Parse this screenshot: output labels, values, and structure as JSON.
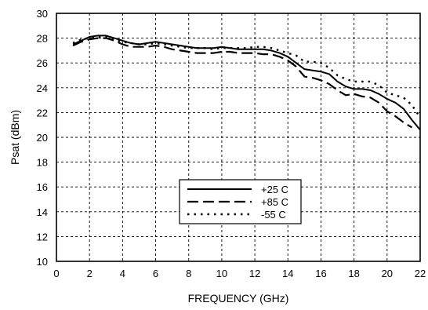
{
  "chart_data": {
    "type": "line",
    "title": "",
    "xlabel": "FREQUENCY (GHz)",
    "ylabel": "Psat (dBm)",
    "xlim": [
      0,
      22
    ],
    "ylim": [
      10,
      30
    ],
    "xticks": [
      0,
      2,
      4,
      6,
      8,
      10,
      12,
      14,
      16,
      18,
      20,
      22
    ],
    "yticks": [
      10,
      12,
      14,
      16,
      18,
      20,
      22,
      24,
      26,
      28,
      30
    ],
    "grid": true,
    "grid_style": "dashed",
    "legend_position": "center-bottom",
    "series": [
      {
        "name": "+25 C",
        "line_style": "solid",
        "x": [
          1,
          1.5,
          2,
          2.5,
          3,
          3.5,
          4,
          4.5,
          5,
          5.5,
          6,
          6.5,
          7,
          7.5,
          8,
          8.5,
          9,
          9.5,
          10,
          10.5,
          11,
          11.5,
          12,
          12.5,
          13,
          13.5,
          14,
          14.5,
          15,
          15.5,
          16,
          16.5,
          17,
          17.5,
          18,
          18.5,
          19,
          19.5,
          20,
          20.5,
          21,
          21.5,
          22
        ],
        "y": [
          27.5,
          27.8,
          28.1,
          28.2,
          28.2,
          28.0,
          27.8,
          27.6,
          27.5,
          27.6,
          27.7,
          27.6,
          27.5,
          27.4,
          27.3,
          27.2,
          27.2,
          27.2,
          27.3,
          27.2,
          27.1,
          27.1,
          27.1,
          27.1,
          27.0,
          26.8,
          26.5,
          26.0,
          25.5,
          25.4,
          25.3,
          25.1,
          24.5,
          24.1,
          23.9,
          23.9,
          23.8,
          23.5,
          23.1,
          22.8,
          22.3,
          21.4,
          20.6
        ]
      },
      {
        "name": "+85 C",
        "line_style": "dashed",
        "x": [
          1,
          1.5,
          2,
          2.5,
          3,
          3.5,
          4,
          4.5,
          5,
          5.5,
          6,
          6.5,
          7,
          7.5,
          8,
          8.5,
          9,
          9.5,
          10,
          10.5,
          11,
          11.5,
          12,
          12.5,
          13,
          13.5,
          14,
          14.5,
          15,
          15.5,
          16,
          16.5,
          17,
          17.5,
          18,
          18.5,
          19,
          19.5,
          20,
          20.5,
          21,
          21.5
        ],
        "y": [
          27.4,
          27.7,
          27.9,
          28.0,
          28.0,
          27.8,
          27.5,
          27.3,
          27.3,
          27.3,
          27.4,
          27.3,
          27.1,
          27.0,
          26.9,
          26.8,
          26.8,
          26.8,
          26.9,
          26.9,
          26.8,
          26.8,
          26.8,
          26.7,
          26.7,
          26.5,
          26.2,
          25.7,
          24.9,
          24.8,
          24.6,
          24.3,
          23.8,
          23.4,
          23.5,
          23.3,
          23.2,
          22.8,
          22.1,
          21.7,
          21.2,
          20.8
        ]
      },
      {
        "name": "-55 C",
        "line_style": "dotted",
        "x": [
          1,
          1.5,
          2,
          2.5,
          3,
          3.5,
          4,
          4.5,
          5,
          5.5,
          6,
          6.5,
          7,
          7.5,
          8,
          8.5,
          9,
          9.5,
          10,
          10.5,
          11,
          11.5,
          12,
          12.5,
          13,
          13.5,
          14,
          14.5,
          15,
          15.5,
          16,
          16.5,
          17,
          17.5,
          18,
          18.5,
          19,
          19.5,
          20,
          20.5,
          21,
          21.5,
          22
        ],
        "y": [
          27.6,
          27.9,
          28.0,
          28.1,
          28.1,
          27.9,
          27.7,
          27.6,
          27.5,
          27.5,
          27.6,
          27.5,
          27.4,
          27.3,
          27.2,
          27.2,
          27.2,
          27.1,
          27.2,
          27.2,
          27.2,
          27.2,
          27.3,
          27.3,
          27.2,
          27.0,
          26.8,
          26.6,
          26.1,
          26.1,
          26.0,
          25.6,
          25.0,
          24.7,
          24.5,
          24.5,
          24.5,
          24.2,
          23.6,
          23.4,
          23.2,
          22.6,
          21.6
        ]
      }
    ]
  }
}
